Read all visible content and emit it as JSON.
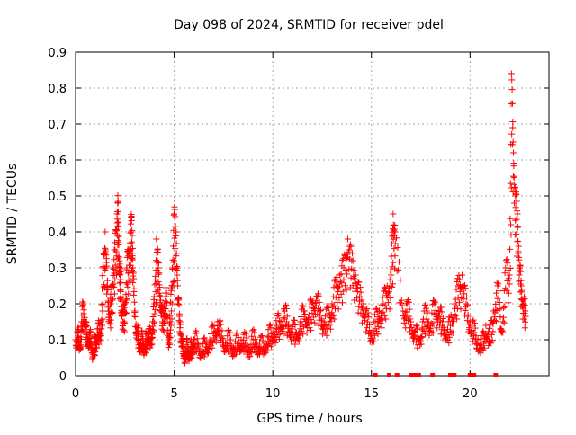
{
  "chart_data": {
    "type": "scatter",
    "title": "Day 098 of 2024, SRMTID for receiver pdel",
    "xlabel": "GPS time / hours",
    "ylabel": "SRMTID / TECUs",
    "xlim": [
      0,
      24
    ],
    "ylim": [
      0,
      0.9
    ],
    "xticks": [
      "0",
      "5",
      "10",
      "15",
      "20"
    ],
    "yticks": [
      "0",
      "0.1",
      "0.2",
      "0.3",
      "0.4",
      "0.5",
      "0.6",
      "0.7",
      "0.8",
      "0.9"
    ],
    "grid": true,
    "marker": "+",
    "color": "#ff0000",
    "series": [
      {
        "name": "SRMTID",
        "x": [
          0.0,
          0.1,
          0.2,
          0.3,
          0.4,
          0.5,
          0.6,
          0.7,
          0.8,
          0.9,
          1.0,
          1.1,
          1.2,
          1.3,
          1.4,
          1.5,
          1.6,
          1.7,
          1.8,
          1.9,
          2.0,
          2.1,
          2.15,
          2.2,
          2.25,
          2.3,
          2.4,
          2.5,
          2.6,
          2.7,
          2.8,
          2.85,
          2.9,
          3.0,
          3.1,
          3.2,
          3.3,
          3.4,
          3.5,
          3.6,
          3.7,
          3.8,
          3.9,
          4.0,
          4.1,
          4.2,
          4.3,
          4.4,
          4.5,
          4.6,
          4.7,
          4.8,
          4.9,
          5.0,
          5.1,
          5.2,
          5.3,
          5.4,
          5.5,
          5.6,
          5.7,
          5.8,
          5.9,
          6.0,
          6.2,
          6.4,
          6.6,
          6.8,
          7.0,
          7.2,
          7.4,
          7.6,
          7.8,
          8.0,
          8.2,
          8.4,
          8.6,
          8.8,
          9.0,
          9.2,
          9.4,
          9.6,
          9.8,
          10.0,
          10.2,
          10.4,
          10.6,
          10.8,
          11.0,
          11.2,
          11.4,
          11.6,
          11.8,
          12.0,
          12.2,
          12.4,
          12.6,
          12.8,
          13.0,
          13.2,
          13.4,
          13.6,
          13.8,
          14.0,
          14.2,
          14.4,
          14.6,
          14.8,
          15.0,
          15.2,
          15.4,
          15.6,
          15.8,
          16.0,
          16.1,
          16.2,
          16.6,
          16.8,
          17.0,
          17.2,
          17.4,
          17.6,
          17.8,
          18.0,
          18.2,
          18.4,
          18.6,
          18.8,
          19.0,
          19.2,
          19.4,
          19.6,
          19.8,
          20.0,
          20.2,
          20.4,
          20.6,
          20.8,
          21.0,
          21.2,
          21.4,
          21.6,
          21.8,
          22.0,
          22.1,
          22.2,
          22.3,
          22.4,
          22.5,
          22.6,
          22.7,
          22.8
        ],
        "y": [
          0.1,
          0.12,
          0.08,
          0.15,
          0.2,
          0.14,
          0.1,
          0.12,
          0.08,
          0.07,
          0.09,
          0.13,
          0.12,
          0.15,
          0.3,
          0.4,
          0.25,
          0.18,
          0.2,
          0.3,
          0.35,
          0.45,
          0.48,
          0.33,
          0.28,
          0.22,
          0.15,
          0.2,
          0.3,
          0.35,
          0.4,
          0.44,
          0.3,
          0.18,
          0.12,
          0.1,
          0.09,
          0.1,
          0.08,
          0.1,
          0.12,
          0.1,
          0.15,
          0.2,
          0.38,
          0.3,
          0.22,
          0.15,
          0.2,
          0.22,
          0.1,
          0.15,
          0.3,
          0.45,
          0.4,
          0.2,
          0.15,
          0.08,
          0.06,
          0.07,
          0.08,
          0.06,
          0.08,
          0.1,
          0.09,
          0.07,
          0.08,
          0.1,
          0.12,
          0.15,
          0.11,
          0.09,
          0.1,
          0.08,
          0.09,
          0.1,
          0.09,
          0.08,
          0.1,
          0.09,
          0.08,
          0.09,
          0.11,
          0.12,
          0.14,
          0.15,
          0.18,
          0.14,
          0.13,
          0.12,
          0.15,
          0.18,
          0.16,
          0.2,
          0.22,
          0.18,
          0.15,
          0.17,
          0.2,
          0.25,
          0.28,
          0.3,
          0.38,
          0.32,
          0.28,
          0.22,
          0.2,
          0.15,
          0.12,
          0.15,
          0.18,
          0.2,
          0.25,
          0.28,
          0.45,
          0.4,
          0.18,
          0.2,
          0.15,
          0.12,
          0.1,
          0.15,
          0.18,
          0.14,
          0.2,
          0.18,
          0.15,
          0.12,
          0.14,
          0.2,
          0.25,
          0.28,
          0.2,
          0.15,
          0.12,
          0.1,
          0.08,
          0.14,
          0.1,
          0.18,
          0.25,
          0.12,
          0.3,
          0.28,
          0.84,
          0.62,
          0.5,
          0.45,
          0.3,
          0.25,
          0.2,
          0.18
        ]
      }
    ],
    "zero_markers_x": [
      15.2,
      15.9,
      16.3,
      17.0,
      17.2,
      17.4,
      18.1,
      19.0,
      19.2,
      20.0,
      20.2,
      21.3
    ]
  }
}
